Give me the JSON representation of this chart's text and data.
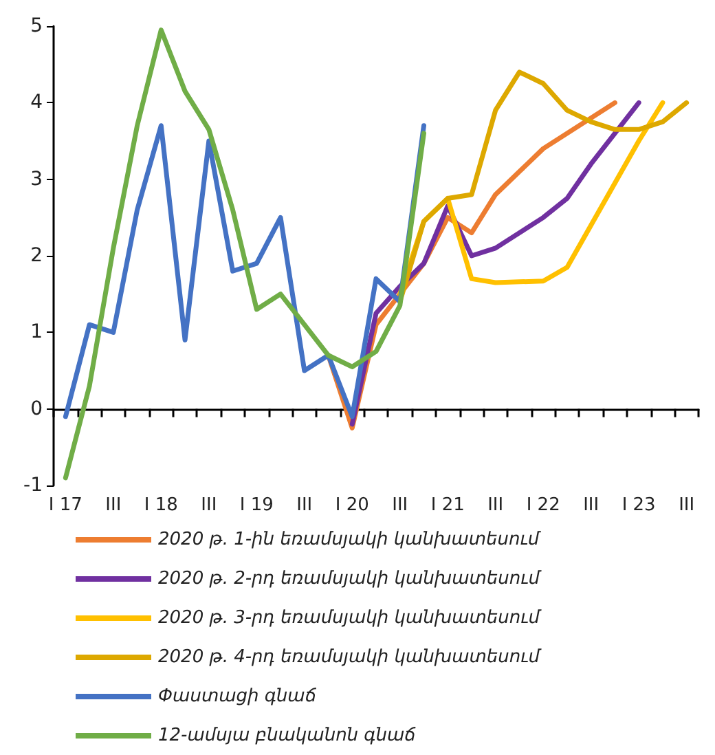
{
  "chart_data": {
    "type": "line",
    "categories": [
      "I 17",
      null,
      "III",
      null,
      "I 18",
      null,
      "III",
      null,
      "I 19",
      null,
      "III",
      null,
      "I 20",
      null,
      "III",
      null,
      "I 21",
      null,
      "III",
      null,
      "I 22",
      null,
      "III",
      null,
      "I 23",
      null,
      "III"
    ],
    "series": [
      {
        "name": "2020 թ. 1-ին եռամսյակի կանխատեսում",
        "color": "#ed7d31",
        "values": [
          null,
          null,
          null,
          null,
          null,
          null,
          null,
          null,
          null,
          null,
          null,
          0.7,
          -0.25,
          1.1,
          1.5,
          1.9,
          2.5,
          2.3,
          2.8,
          3.1,
          3.4,
          3.6,
          3.8,
          4.0,
          null,
          null,
          null
        ]
      },
      {
        "name": "2020 թ. 2-րդ եռամսյակի կանխատեսում",
        "color": "#7030a0",
        "values": [
          null,
          null,
          null,
          null,
          null,
          null,
          null,
          null,
          null,
          null,
          null,
          null,
          -0.2,
          1.25,
          1.6,
          1.9,
          2.65,
          2.0,
          2.1,
          2.3,
          2.5,
          2.75,
          3.2,
          3.6,
          4.0,
          null,
          null
        ]
      },
      {
        "name": "2020 թ. 3-րդ եռամսյակի կանխատեսում",
        "color": "#ffc000",
        "values": [
          null,
          null,
          null,
          null,
          null,
          null,
          null,
          null,
          null,
          null,
          null,
          null,
          null,
          null,
          1.5,
          2.45,
          2.75,
          1.7,
          1.65,
          1.66,
          1.67,
          1.85,
          2.4,
          2.95,
          3.5,
          4.0,
          null
        ]
      },
      {
        "name": "2020 թ. 4-րդ եռամսյակի կանխատեսում",
        "color": "#dda800",
        "values": [
          null,
          null,
          null,
          null,
          null,
          null,
          null,
          null,
          null,
          null,
          null,
          null,
          null,
          null,
          1.4,
          2.45,
          2.75,
          2.8,
          3.9,
          4.4,
          4.25,
          3.9,
          3.75,
          3.65,
          3.65,
          3.75,
          4.0
        ]
      },
      {
        "name": "Փաստացի գնաճ",
        "color": "#4472c4",
        "values": [
          -0.1,
          1.1,
          1.0,
          2.6,
          3.7,
          0.9,
          3.5,
          1.8,
          1.9,
          2.5,
          0.5,
          0.7,
          -0.1,
          1.7,
          1.4,
          3.7,
          null,
          null,
          null,
          null,
          null,
          null,
          null,
          null,
          null,
          null,
          null
        ]
      },
      {
        "name": "12-ամսյա բնականոն գնաճ",
        "color": "#70ad47",
        "values": [
          -0.9,
          0.3,
          2.1,
          3.7,
          4.95,
          4.15,
          3.65,
          2.6,
          1.3,
          1.5,
          1.1,
          0.7,
          0.55,
          0.75,
          1.35,
          3.6,
          null,
          null,
          null,
          null,
          null,
          null,
          null,
          null,
          null,
          null,
          null
        ]
      }
    ],
    "ylim": [
      -1,
      5
    ],
    "yticks": [
      -1,
      0,
      1,
      2,
      3,
      4,
      5
    ],
    "legend": "bottom",
    "marker": "none",
    "line_style": "solid"
  }
}
